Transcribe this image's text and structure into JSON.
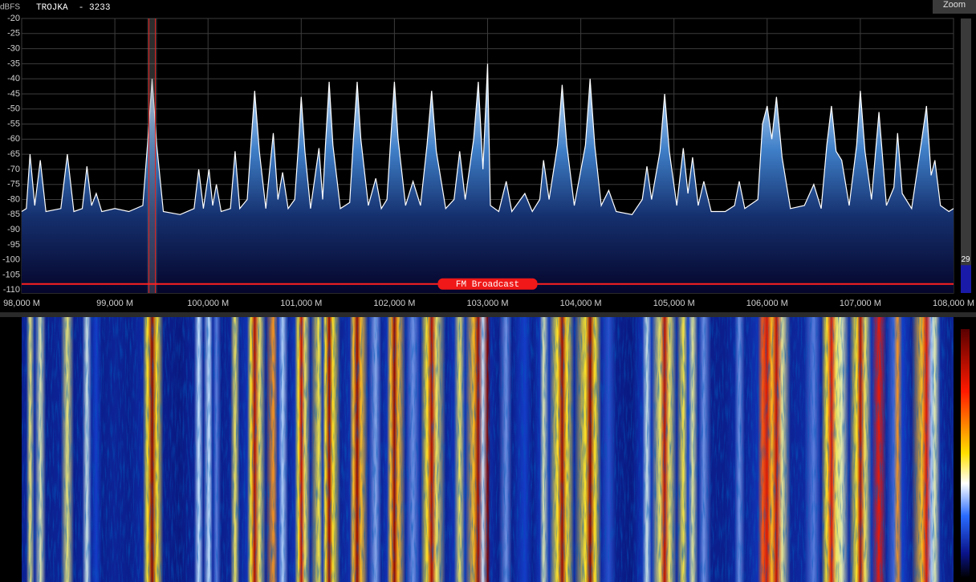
{
  "header": {
    "unit": "dBFS",
    "station": "TROJKA  - 3233",
    "zoom": "Zoom"
  },
  "chart_data": {
    "type": "area",
    "x": [
      98.0,
      98.05,
      98.09,
      98.14,
      98.2,
      98.26,
      98.42,
      98.49,
      98.56,
      98.65,
      98.7,
      98.75,
      98.8,
      98.86,
      99.0,
      99.15,
      99.3,
      99.35,
      99.4,
      99.45,
      99.52,
      99.7,
      99.85,
      99.9,
      99.95,
      100.01,
      100.05,
      100.09,
      100.14,
      100.24,
      100.29,
      100.34,
      100.42,
      100.46,
      100.5,
      100.55,
      100.62,
      100.7,
      100.75,
      100.8,
      100.86,
      100.93,
      100.97,
      101.0,
      101.04,
      101.1,
      101.19,
      101.23,
      101.26,
      101.3,
      101.34,
      101.42,
      101.52,
      101.56,
      101.6,
      101.64,
      101.72,
      101.8,
      101.86,
      101.92,
      101.96,
      102.0,
      102.04,
      102.12,
      102.2,
      102.28,
      102.35,
      102.4,
      102.45,
      102.55,
      102.64,
      102.7,
      102.76,
      102.85,
      102.9,
      102.95,
      103.0,
      103.03,
      103.12,
      103.2,
      103.26,
      103.4,
      103.48,
      103.56,
      103.6,
      103.66,
      103.75,
      103.8,
      103.85,
      103.93,
      104.05,
      104.1,
      104.15,
      104.22,
      104.3,
      104.38,
      104.55,
      104.66,
      104.71,
      104.76,
      104.85,
      104.9,
      104.95,
      105.03,
      105.1,
      105.15,
      105.2,
      105.26,
      105.32,
      105.4,
      105.55,
      105.65,
      105.7,
      105.76,
      105.9,
      105.95,
      106.0,
      106.05,
      106.1,
      106.16,
      106.25,
      106.4,
      106.5,
      106.58,
      106.64,
      106.69,
      106.74,
      106.8,
      106.88,
      106.96,
      107.0,
      107.05,
      107.12,
      107.2,
      107.28,
      107.36,
      107.4,
      107.45,
      107.55,
      107.66,
      107.71,
      107.76,
      107.8,
      107.86,
      107.95,
      108.0
    ],
    "values": [
      -84,
      -83,
      -65,
      -82,
      -67,
      -84,
      -83,
      -65,
      -84,
      -83,
      -69,
      -82,
      -78,
      -84,
      -83,
      -84,
      -82,
      -62,
      -40,
      -62,
      -84,
      -85,
      -83,
      -70,
      -83,
      -70,
      -82,
      -75,
      -84,
      -83,
      -64,
      -83,
      -80,
      -62,
      -44,
      -64,
      -83,
      -58,
      -80,
      -71,
      -83,
      -80,
      -62,
      -46,
      -64,
      -83,
      -63,
      -80,
      -62,
      -41,
      -62,
      -83,
      -81,
      -60,
      -41,
      -60,
      -82,
      -73,
      -83,
      -80,
      -60,
      -41,
      -60,
      -82,
      -74,
      -82,
      -62,
      -44,
      -64,
      -83,
      -80,
      -64,
      -80,
      -60,
      -41,
      -70,
      -35,
      -82,
      -84,
      -74,
      -84,
      -78,
      -84,
      -80,
      -67,
      -80,
      -62,
      -42,
      -62,
      -82,
      -62,
      -40,
      -62,
      -82,
      -77,
      -84,
      -85,
      -80,
      -69,
      -80,
      -64,
      -45,
      -64,
      -82,
      -63,
      -78,
      -66,
      -82,
      -74,
      -84,
      -84,
      -82,
      -74,
      -83,
      -80,
      -55,
      -49,
      -60,
      -46,
      -66,
      -83,
      -82,
      -75,
      -83,
      -62,
      -49,
      -64,
      -67,
      -82,
      -62,
      -44,
      -64,
      -80,
      -51,
      -82,
      -76,
      -58,
      -78,
      -83,
      -60,
      -49,
      -72,
      -67,
      -82,
      -84,
      -83
    ],
    "xlim": [
      98,
      108
    ],
    "ylim": [
      -111,
      -20
    ],
    "yticks": [
      -20,
      -25,
      -30,
      -35,
      -40,
      -45,
      -50,
      -55,
      -60,
      -65,
      -70,
      -75,
      -80,
      -85,
      -90,
      -95,
      -100,
      -105,
      -110
    ],
    "xticks": [
      {
        "value": 98,
        "label": "98,000 M"
      },
      {
        "value": 99,
        "label": "99,000 M"
      },
      {
        "value": 100,
        "label": "100,000 M"
      },
      {
        "value": 101,
        "label": "101,000 M"
      },
      {
        "value": 102,
        "label": "102,000 M"
      },
      {
        "value": 103,
        "label": "103,000 M"
      },
      {
        "value": 104,
        "label": "104,000 M"
      },
      {
        "value": 105,
        "label": "105,000 M"
      },
      {
        "value": 106,
        "label": "106,000 M"
      },
      {
        "value": 107,
        "label": "107,000 M"
      },
      {
        "value": 108,
        "label": "108,000 M"
      }
    ],
    "grid": true,
    "color": "#ffffff",
    "marker_x": 99.4,
    "band": {
      "label": "FM Broadcast",
      "value": -108
    },
    "level": {
      "value": 29,
      "lim": [
        0,
        100
      ]
    }
  }
}
